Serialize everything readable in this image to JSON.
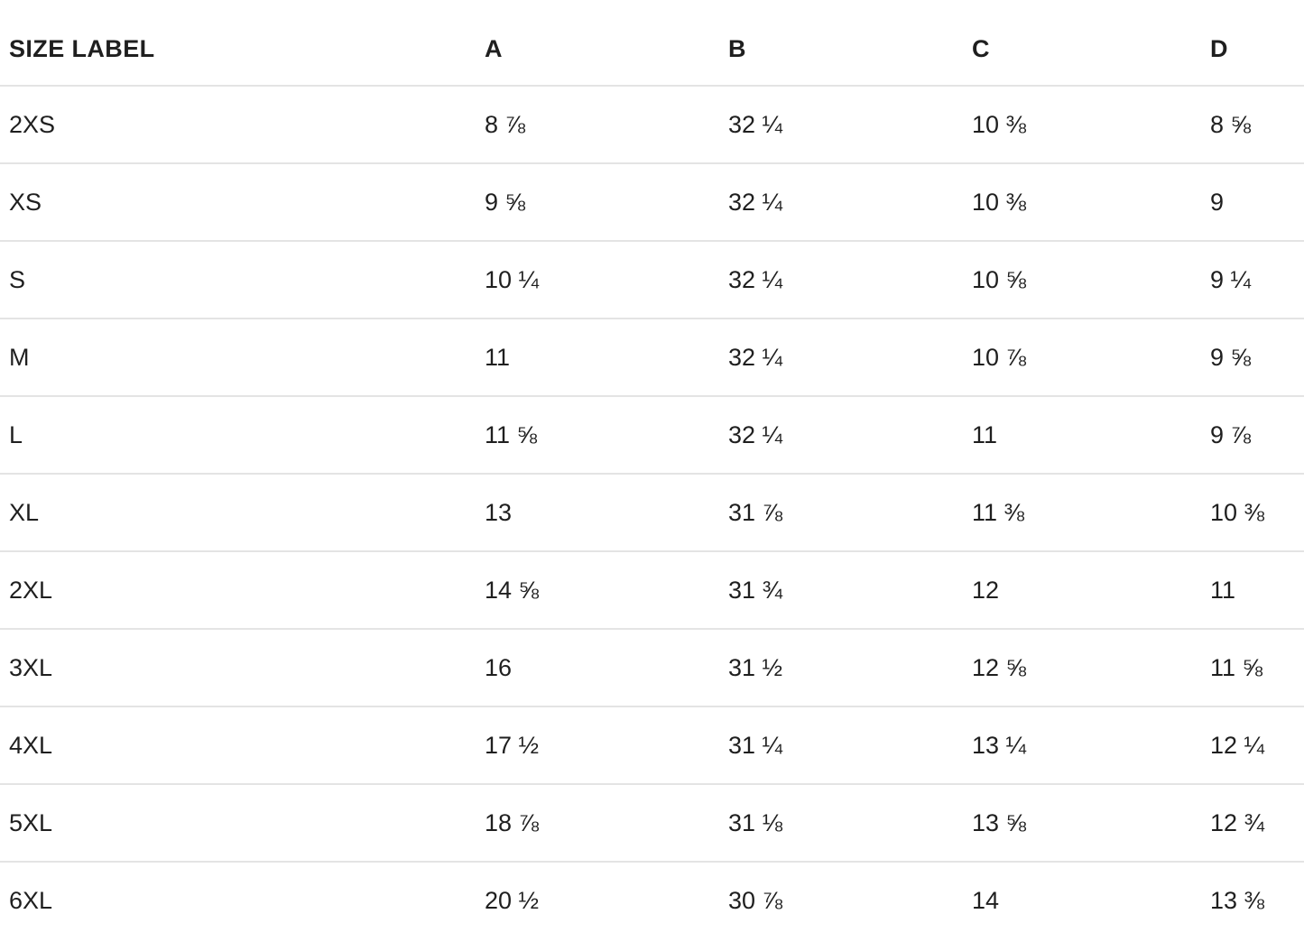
{
  "table": {
    "columns": [
      "SIZE LABEL",
      "A",
      "B",
      "C",
      "D"
    ],
    "rows": [
      {
        "size": "2XS",
        "a": "8 ⅞",
        "b": "32 ¼",
        "c": "10 ⅜",
        "d": "8 ⅝"
      },
      {
        "size": "XS",
        "a": "9 ⅝",
        "b": "32 ¼",
        "c": "10 ⅜",
        "d": "9"
      },
      {
        "size": "S",
        "a": "10 ¼",
        "b": "32 ¼",
        "c": "10 ⅝",
        "d": "9 ¼"
      },
      {
        "size": "M",
        "a": "11",
        "b": "32 ¼",
        "c": "10 ⅞",
        "d": "9 ⅝"
      },
      {
        "size": "L",
        "a": "11 ⅝",
        "b": "32 ¼",
        "c": "11",
        "d": "9 ⅞"
      },
      {
        "size": "XL",
        "a": "13",
        "b": "31 ⅞",
        "c": "11 ⅜",
        "d": "10 ⅜"
      },
      {
        "size": "2XL",
        "a": "14 ⅝",
        "b": "31 ¾",
        "c": "12",
        "d": "11"
      },
      {
        "size": "3XL",
        "a": "16",
        "b": "31 ½",
        "c": "12 ⅝",
        "d": "11 ⅝"
      },
      {
        "size": "4XL",
        "a": "17 ½",
        "b": "31 ¼",
        "c": "13 ¼",
        "d": "12 ¼"
      },
      {
        "size": "5XL",
        "a": "18 ⅞",
        "b": "31 ⅛",
        "c": "13 ⅝",
        "d": "12 ¾"
      },
      {
        "size": "6XL",
        "a": "20 ½",
        "b": "30 ⅞",
        "c": "14",
        "d": "13 ⅜"
      }
    ],
    "colors": {
      "text": "#1f1f1f",
      "divider": "#e4e4e4",
      "background": "#ffffff"
    }
  },
  "chart_data": {
    "type": "table",
    "title": "",
    "columns": [
      "SIZE LABEL",
      "A",
      "B",
      "C",
      "D"
    ],
    "rows": [
      [
        "2XS",
        "8 ⅞",
        "32 ¼",
        "10 ⅜",
        "8 ⅝"
      ],
      [
        "XS",
        "9 ⅝",
        "32 ¼",
        "10 ⅜",
        "9"
      ],
      [
        "S",
        "10 ¼",
        "32 ¼",
        "10 ⅝",
        "9 ¼"
      ],
      [
        "M",
        "11",
        "32 ¼",
        "10 ⅞",
        "9 ⅝"
      ],
      [
        "L",
        "11 ⅝",
        "32 ¼",
        "11",
        "9 ⅞"
      ],
      [
        "XL",
        "13",
        "31 ⅞",
        "11 ⅜",
        "10 ⅜"
      ],
      [
        "2XL",
        "14 ⅝",
        "31 ¾",
        "12",
        "11"
      ],
      [
        "3XL",
        "16",
        "31 ½",
        "12 ⅝",
        "11 ⅝"
      ],
      [
        "4XL",
        "17 ½",
        "31 ¼",
        "13 ¼",
        "12 ¼"
      ],
      [
        "5XL",
        "18 ⅞",
        "31 ⅛",
        "13 ⅝",
        "12 ¾"
      ],
      [
        "6XL",
        "20 ½",
        "30 ⅞",
        "14",
        "13 ⅜"
      ]
    ]
  }
}
